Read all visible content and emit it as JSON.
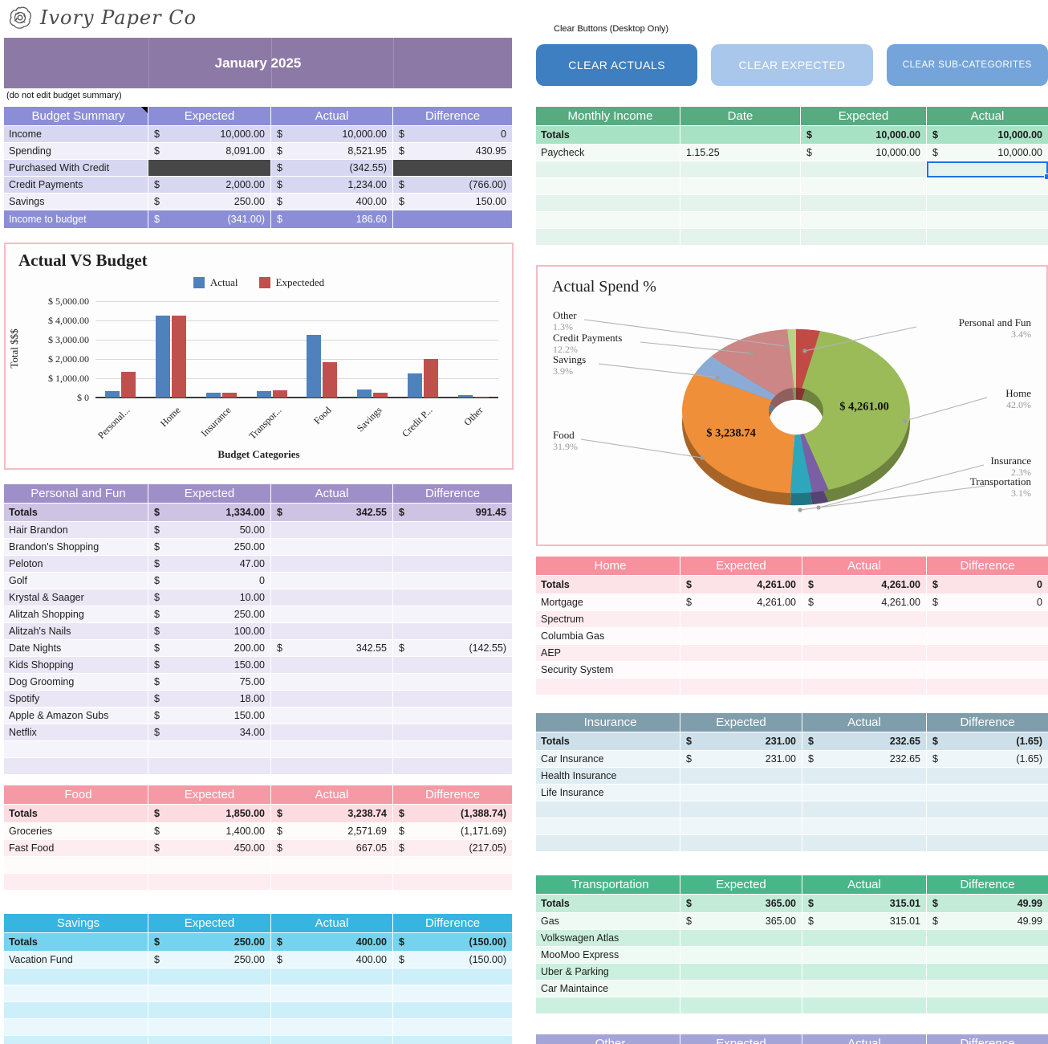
{
  "logo": {
    "brand": "Ivory Paper Co"
  },
  "banner": {
    "title": "January 2025",
    "bg": "#8d79a6"
  },
  "note": "(do not edit budget summary)",
  "clear_buttons": {
    "heading": "Clear Buttons (Desktop Only)",
    "buttons": [
      {
        "label": "CLEAR ACTUALS",
        "bg": "#3e7fc1",
        "font_size": 14
      },
      {
        "label": "CLEAR EXPECTED",
        "bg": "#a9c7ea",
        "font_size": 14
      },
      {
        "label": "CLEAR SUB-CATEGORITES",
        "bg": "#74a4d9",
        "font_size": 11.5
      }
    ]
  },
  "tables": {
    "budget_summary": {
      "title": "Budget Summary",
      "columns": [
        "Expected",
        "Actual",
        "Difference"
      ],
      "theme": {
        "header": "#8b8ed6",
        "totals": "#d7d7f1",
        "tint": "#d7d7f1",
        "light": "#f1f0fa",
        "highlight": "#8b8ed6",
        "dark": "#474747"
      },
      "corner_note": true,
      "rows": [
        {
          "label": "Income",
          "expected": "10,000.00",
          "actual": "10,000.00",
          "difference": "0",
          "shade": "tint"
        },
        {
          "label": "Spending",
          "expected": "8,091.00",
          "actual": "8,521.95",
          "difference": "430.95",
          "shade": "light"
        },
        {
          "label": "Purchased With Credit",
          "expected": "",
          "actual": "(342.55)",
          "difference": "",
          "shade": "tint",
          "dark": [
            "expected",
            "difference"
          ]
        },
        {
          "label": "Credit Payments",
          "expected": "2,000.00",
          "actual": "1,234.00",
          "difference": "(766.00)",
          "shade": "tint"
        },
        {
          "label": "Savings",
          "expected": "250.00",
          "actual": "400.00",
          "difference": "150.00",
          "shade": "light"
        },
        {
          "label": "Income to budget",
          "expected": "(341.00)",
          "actual": "186.60",
          "difference": "",
          "shade": "highlight"
        }
      ]
    },
    "monthly_income": {
      "title": "Monthly Income",
      "columns": [
        "Date",
        "Expected",
        "Actual"
      ],
      "theme": {
        "header": "#58aa81",
        "totals": "#a8e2c5",
        "tint": "#e4f4ec",
        "light": "#f4fbf7"
      },
      "rows": [
        {
          "label": "Totals",
          "date": "",
          "expected": "10,000.00",
          "actual": "10,000.00",
          "shade": "totals"
        },
        {
          "label": "Paycheck",
          "date": "1.15.25",
          "expected": "10,000.00",
          "actual": "10,000.00",
          "shade": "light"
        },
        {
          "label": "",
          "date": "",
          "expected": "",
          "actual": "",
          "shade": "tint",
          "selected": "actual"
        },
        {
          "label": "",
          "date": "",
          "expected": "",
          "actual": "",
          "shade": "light"
        },
        {
          "label": "",
          "date": "",
          "expected": "",
          "actual": "",
          "shade": "tint"
        },
        {
          "label": "",
          "date": "",
          "expected": "",
          "actual": "",
          "shade": "light"
        },
        {
          "label": "",
          "date": "",
          "expected": "",
          "actual": "",
          "shade": "tint"
        }
      ]
    },
    "personal": {
      "title": "Personal and Fun",
      "columns": [
        "Expected",
        "Actual",
        "Difference"
      ],
      "theme": {
        "header": "#9e8fc8",
        "totals": "#cfc3e4",
        "tint": "#eae6f5",
        "light": "#f6f4fb"
      },
      "rows": [
        {
          "label": "Totals",
          "expected": "1,334.00",
          "actual": "342.55",
          "difference": "991.45",
          "shade": "totals",
          "bold": true
        },
        {
          "label": "Hair Brandon",
          "expected": "50.00",
          "shade": "tint"
        },
        {
          "label": "Brandon's Shopping",
          "expected": "250.00",
          "shade": "light"
        },
        {
          "label": "Peloton",
          "expected": "47.00",
          "shade": "tint"
        },
        {
          "label": "Golf",
          "expected": "0",
          "shade": "light"
        },
        {
          "label": "Krystal & Saager",
          "expected": "10.00",
          "shade": "tint"
        },
        {
          "label": "Alitzah Shopping",
          "expected": "250.00",
          "shade": "light"
        },
        {
          "label": "Alitzah's Nails",
          "expected": "100.00",
          "shade": "tint"
        },
        {
          "label": "Date Nights",
          "expected": "200.00",
          "actual": "342.55",
          "difference": "(142.55)",
          "shade": "light"
        },
        {
          "label": "Kids Shopping",
          "expected": "150.00",
          "shade": "tint"
        },
        {
          "label": "Dog Grooming",
          "expected": "75.00",
          "shade": "light"
        },
        {
          "label": "Spotify",
          "expected": "18.00",
          "shade": "tint"
        },
        {
          "label": "Apple & Amazon Subs",
          "expected": "150.00",
          "shade": "light"
        },
        {
          "label": "Netflix",
          "expected": "34.00",
          "shade": "tint"
        },
        {
          "label": "",
          "shade": "light"
        },
        {
          "label": "",
          "shade": "tint"
        }
      ]
    },
    "food": {
      "title": "Food",
      "columns": [
        "Expected",
        "Actual",
        "Difference"
      ],
      "theme": {
        "header": "#f59aa4",
        "totals": "#fcdce1",
        "tint": "#fdedf0",
        "light": "#fefbfb"
      },
      "rows": [
        {
          "label": "Totals",
          "expected": "1,850.00",
          "actual": "3,238.74",
          "difference": "(1,388.74)",
          "shade": "totals",
          "bold": true
        },
        {
          "label": "Groceries",
          "expected": "1,400.00",
          "actual": "2,571.69",
          "difference": "(1,171.69)",
          "shade": "light"
        },
        {
          "label": "Fast Food",
          "expected": "450.00",
          "actual": "667.05",
          "difference": "(217.05)",
          "shade": "tint"
        },
        {
          "label": "",
          "shade": "light"
        },
        {
          "label": "",
          "shade": "tint"
        }
      ]
    },
    "savings_table": {
      "title": "Savings",
      "columns": [
        "Expected",
        "Actual",
        "Difference"
      ],
      "theme": {
        "header": "#35b5e0",
        "totals": "#74d3ee",
        "tint": "#cdeffa",
        "light": "#eaf8fd"
      },
      "rows": [
        {
          "label": "Totals",
          "expected": "250.00",
          "actual": "400.00",
          "difference": "(150.00)",
          "shade": "totals",
          "bold": true
        },
        {
          "label": "Vacation Fund",
          "expected": "250.00",
          "actual": "400.00",
          "difference": "(150.00)",
          "shade": "light"
        },
        {
          "label": "",
          "shade": "tint"
        },
        {
          "label": "",
          "shade": "light"
        },
        {
          "label": "",
          "shade": "tint"
        },
        {
          "label": "",
          "shade": "light"
        },
        {
          "label": "",
          "shade": "tint"
        },
        {
          "label": "",
          "shade": "light"
        }
      ]
    },
    "home": {
      "title": "Home",
      "columns": [
        "Expected",
        "Actual",
        "Difference"
      ],
      "theme": {
        "header": "#f8909e",
        "totals": "#fce3e8",
        "tint": "#fdedf0",
        "light": "#fffbfc"
      },
      "rows": [
        {
          "label": "Totals",
          "expected": "4,261.00",
          "actual": "4,261.00",
          "difference": "0",
          "shade": "totals",
          "bold": true
        },
        {
          "label": "Mortgage",
          "expected": "4,261.00",
          "actual": "4,261.00",
          "difference": "0",
          "shade": "light"
        },
        {
          "label": "Spectrum",
          "shade": "tint"
        },
        {
          "label": "Columbia Gas",
          "shade": "light"
        },
        {
          "label": "AEP",
          "shade": "tint"
        },
        {
          "label": "Security System",
          "shade": "light"
        },
        {
          "label": "",
          "shade": "tint"
        }
      ]
    },
    "insurance": {
      "title": "Insurance",
      "columns": [
        "Expected",
        "Actual",
        "Difference"
      ],
      "theme": {
        "header": "#7f9dab",
        "totals": "#cde0ea",
        "tint": "#dfedf3",
        "light": "#eff6f9"
      },
      "rows": [
        {
          "label": "Totals",
          "expected": "231.00",
          "actual": "232.65",
          "difference": "(1.65)",
          "shade": "totals",
          "bold": true
        },
        {
          "label": "Car Insurance",
          "expected": "231.00",
          "actual": "232.65",
          "difference": "(1.65)",
          "shade": "light"
        },
        {
          "label": "Health Insurance",
          "shade": "tint"
        },
        {
          "label": "Life Insurance",
          "shade": "light"
        },
        {
          "label": "",
          "shade": "tint"
        },
        {
          "label": "",
          "shade": "light"
        },
        {
          "label": "",
          "shade": "tint"
        }
      ]
    },
    "transportation": {
      "title": "Transportation",
      "columns": [
        "Expected",
        "Actual",
        "Difference"
      ],
      "theme": {
        "header": "#48b688",
        "totals": "#c3ebd8",
        "tint": "#ccf0df",
        "light": "#effaf4"
      },
      "rows": [
        {
          "label": "Totals",
          "expected": "365.00",
          "actual": "315.01",
          "difference": "49.99",
          "shade": "totals",
          "bold": true
        },
        {
          "label": "Gas",
          "expected": "365.00",
          "actual": "315.01",
          "difference": "49.99",
          "shade": "light"
        },
        {
          "label": "Volkswagen Atlas",
          "shade": "tint"
        },
        {
          "label": "MooMoo Express",
          "shade": "light"
        },
        {
          "label": "Uber & Parking",
          "shade": "tint"
        },
        {
          "label": "Car Maintaince",
          "shade": "light"
        },
        {
          "label": "",
          "shade": "tint"
        }
      ]
    },
    "other": {
      "title": "Other",
      "columns": [
        "Expected",
        "Actual",
        "Difference"
      ],
      "theme": {
        "header": "#a5a4d7",
        "totals": "#d0cfeb",
        "tint": "#e9e8f6",
        "light": "#f6f6fc"
      },
      "rows": []
    }
  },
  "chart_data": [
    {
      "type": "bar",
      "title": "Actual VS Budget",
      "categories": [
        "Personal...",
        "Home",
        "Insurance",
        "Transpor...",
        "Food",
        "Savings",
        "Credit P...",
        "Other"
      ],
      "series": [
        {
          "name": "Actual",
          "color": "#4f81bd",
          "values": [
            342.55,
            4261.0,
            232.65,
            315.01,
            3238.74,
            400.0,
            1234.0,
            131
          ]
        },
        {
          "name": "Expecteded",
          "color": "#c0504d",
          "values": [
            1334.0,
            4261.0,
            231.0,
            365.0,
            1850.0,
            250.0,
            2000.0,
            60
          ]
        }
      ],
      "xlabel": "Budget Categories",
      "ylabel": "Total $$$",
      "ylim": [
        0,
        5000
      ],
      "yticks": [
        "$ 0",
        "$ 1,000.00",
        "$ 2,000.00",
        "$ 3,000.00",
        "$ 4,000.00",
        "$ 5,000.00"
      ],
      "grid": true,
      "legend_position": "top"
    },
    {
      "type": "pie",
      "title": "Actual Spend %",
      "donut": true,
      "slices": [
        {
          "label": "Personal and Fun",
          "pct": 3.4,
          "pct_label": "3.4%",
          "color": "#c14a45"
        },
        {
          "label": "Home",
          "pct": 42.0,
          "pct_label": "42.0%",
          "color": "#9bbb59",
          "value_label": "$ 4,261.00"
        },
        {
          "label": "Insurance",
          "pct": 2.3,
          "pct_label": "2.3%",
          "color": "#7a5fa5"
        },
        {
          "label": "Transportation",
          "pct": 3.1,
          "pct_label": "3.1%",
          "color": "#2ea7bd"
        },
        {
          "label": "Food",
          "pct": 31.9,
          "pct_label": "31.9%",
          "color": "#ef8f39",
          "value_label": "$ 3,238.74"
        },
        {
          "label": "Savings",
          "pct": 3.9,
          "pct_label": "3.9%",
          "color": "#8aabd6"
        },
        {
          "label": "Credit Payments",
          "pct": 12.2,
          "pct_label": "12.2%",
          "color": "#cc8685"
        },
        {
          "label": "Other",
          "pct": 1.3,
          "pct_label": "1.3%",
          "color": "#b6d387"
        }
      ]
    }
  ]
}
